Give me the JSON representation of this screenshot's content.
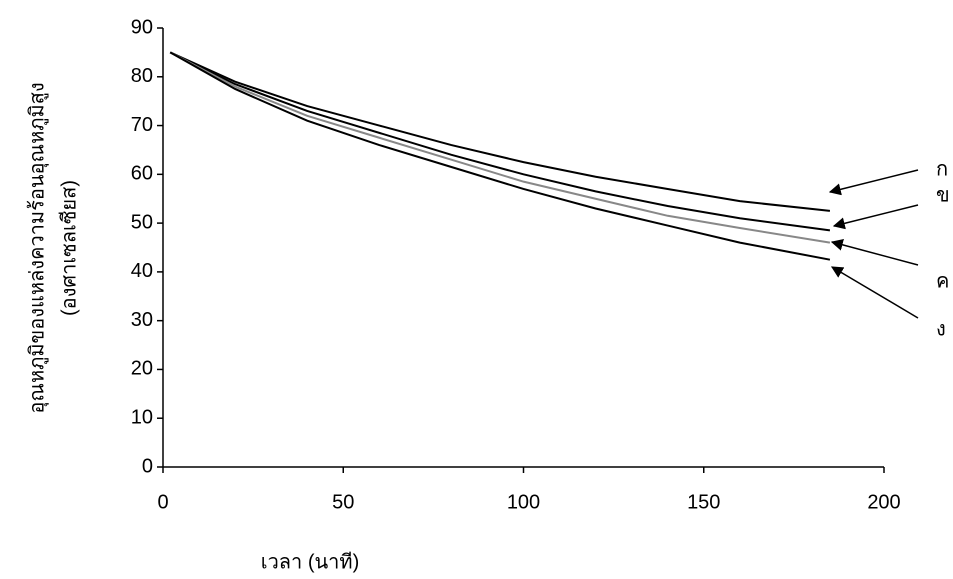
{
  "chart_data": {
    "type": "line",
    "y_label": "อุณหภูมิของแหล่งความร้อนอุณหภูมิสูง",
    "y_label_unit": "(องศาเซลเซียส)",
    "x_label": "เวลา (นาที)",
    "x": [
      2,
      20,
      40,
      60,
      80,
      100,
      120,
      140,
      160,
      185
    ],
    "series": [
      {
        "name": "ก",
        "color": "#000000",
        "values": [
          85,
          79,
          74,
          70,
          66,
          62.5,
          59.5,
          57,
          54.5,
          52.5
        ]
      },
      {
        "name": "ข",
        "color": "#000000",
        "values": [
          85,
          78.5,
          73,
          68.5,
          64,
          60,
          56.5,
          53.5,
          51,
          48.5
        ]
      },
      {
        "name": "ค",
        "color": "#888888",
        "values": [
          85,
          78,
          72,
          67.5,
          63,
          58.5,
          55,
          51.5,
          49,
          46
        ]
      },
      {
        "name": "ง",
        "color": "#000000",
        "values": [
          85,
          77.5,
          71,
          66,
          61.5,
          57,
          53,
          49.5,
          46,
          42.5
        ]
      }
    ],
    "xlim": [
      0,
      200
    ],
    "xticks": [
      0,
      50,
      100,
      150,
      200
    ],
    "ylim": [
      0,
      90
    ],
    "yticks": [
      0,
      10,
      20,
      30,
      40,
      50,
      60,
      70,
      80,
      90
    ]
  }
}
